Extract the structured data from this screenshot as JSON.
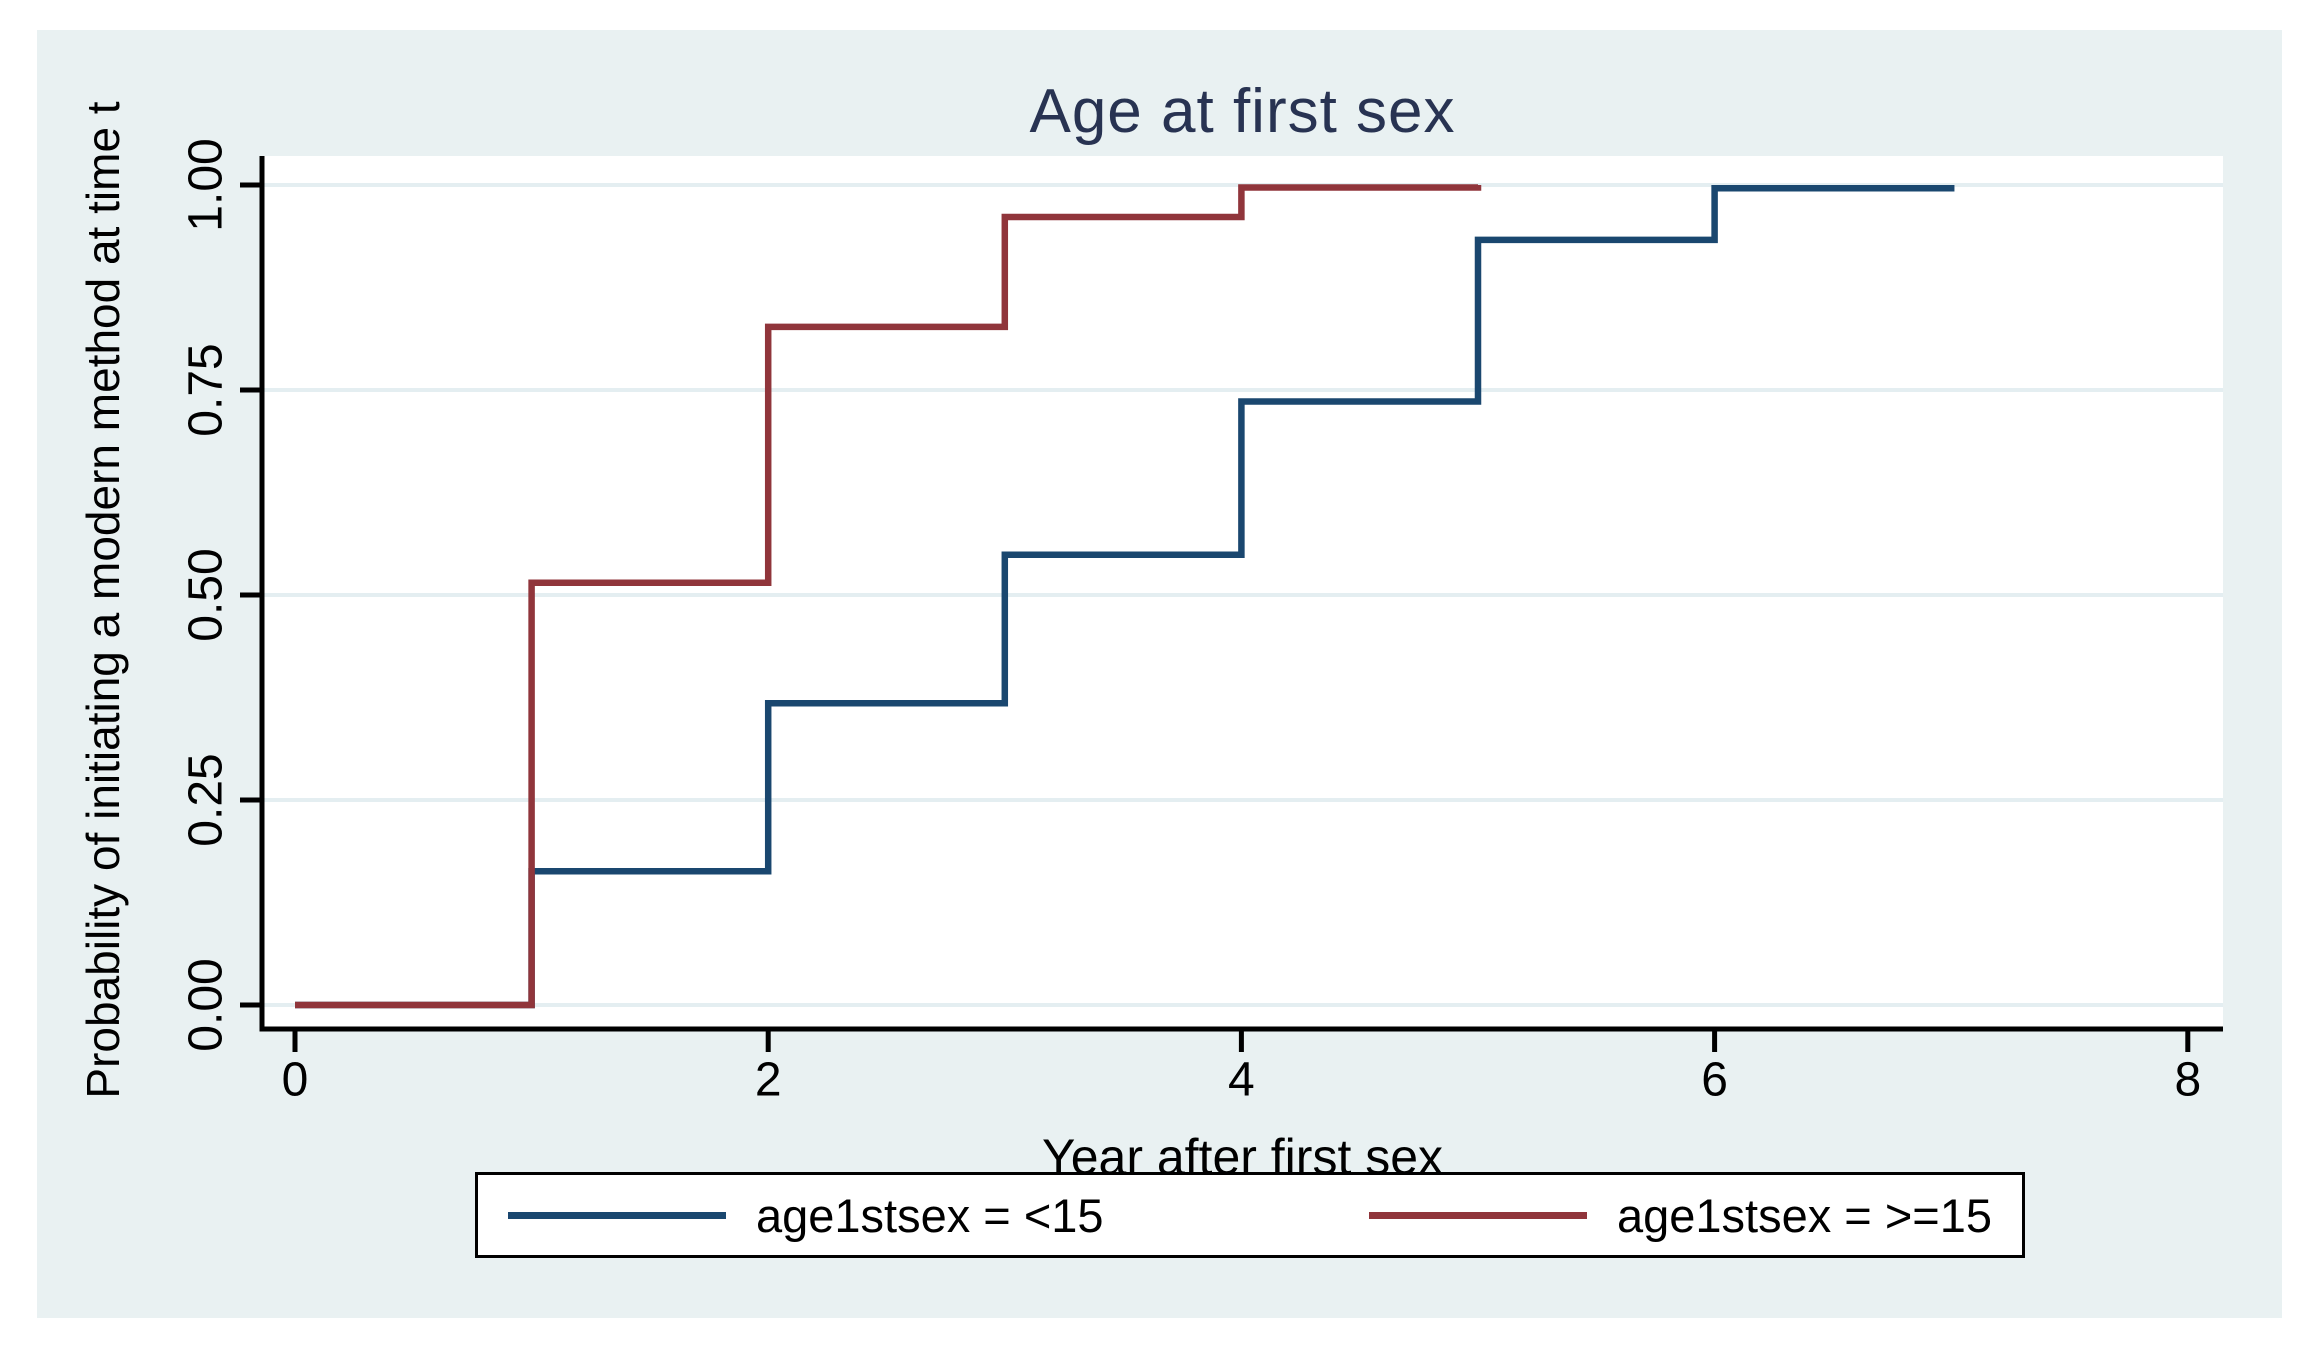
{
  "figure": {
    "background_color": "#e9f1f2",
    "plot_background": "#ffffff",
    "grid_color": "#e4eef1",
    "axis_color": "#000000",
    "title_color": "#283352"
  },
  "chart_data": {
    "type": "line",
    "subtype": "step",
    "title": "Age at first sex",
    "xlabel": "Year after first sex",
    "ylabel": "Probability of initiating a modern method at time t",
    "xlim": [
      0,
      8
    ],
    "ylim": [
      0,
      1
    ],
    "grid": true,
    "legend_position": "bottom",
    "xticks": [
      {
        "value": 0,
        "label": "0"
      },
      {
        "value": 2,
        "label": "2"
      },
      {
        "value": 4,
        "label": "4"
      },
      {
        "value": 6,
        "label": "6"
      },
      {
        "value": 8,
        "label": "8"
      }
    ],
    "yticks": [
      {
        "value": 0.0,
        "label": "0.00"
      },
      {
        "value": 0.25,
        "label": "0.25"
      },
      {
        "value": 0.5,
        "label": "0.50"
      },
      {
        "value": 0.75,
        "label": "0.75"
      },
      {
        "value": 1.0,
        "label": "1.00"
      }
    ],
    "series": [
      {
        "name": "age1stsex = <15",
        "color": "#1a476f",
        "points": [
          [
            0,
            0
          ],
          [
            1,
            0
          ],
          [
            1,
            0.163
          ],
          [
            2,
            0.163
          ],
          [
            2,
            0.368
          ],
          [
            3,
            0.368
          ],
          [
            3,
            0.549
          ],
          [
            4,
            0.549
          ],
          [
            4,
            0.736
          ],
          [
            5,
            0.736
          ],
          [
            5,
            0.933
          ],
          [
            6,
            0.933
          ],
          [
            6,
            0.996
          ],
          [
            7,
            0.996
          ],
          [
            7,
            1.0
          ]
        ]
      },
      {
        "name": "age1stsex = >=15",
        "color": "#90353b",
        "points": [
          [
            0,
            0
          ],
          [
            1,
            0
          ],
          [
            1,
            0.515
          ],
          [
            2,
            0.515
          ],
          [
            2,
            0.827
          ],
          [
            3,
            0.827
          ],
          [
            3,
            0.961
          ],
          [
            4,
            0.961
          ],
          [
            4,
            0.997
          ],
          [
            5,
            0.997
          ],
          [
            5,
            1.0
          ]
        ]
      }
    ]
  },
  "legend": {
    "items": [
      {
        "label": "age1stsex = <15",
        "color": "#1a476f"
      },
      {
        "label": "age1stsex = >=15",
        "color": "#90353b"
      }
    ]
  }
}
